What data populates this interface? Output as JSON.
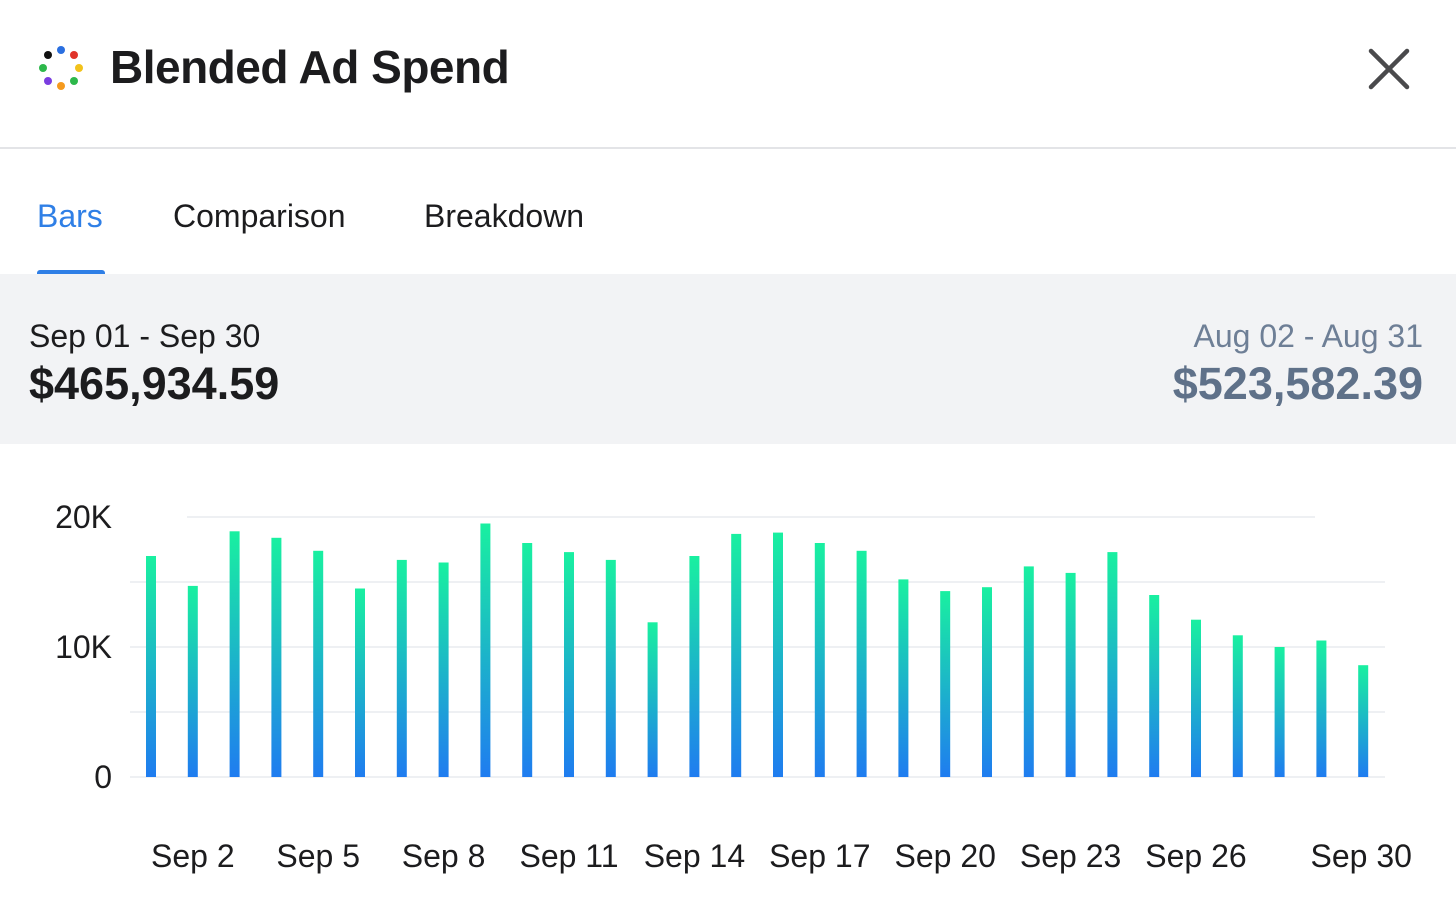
{
  "header": {
    "title": "Blended Ad Spend",
    "logo_icon": "colorful-dots-loader-icon",
    "close_icon": "close-x-icon"
  },
  "tabs": [
    {
      "label": "Bars",
      "active": true
    },
    {
      "label": "Comparison",
      "active": false
    },
    {
      "label": "Breakdown",
      "active": false
    }
  ],
  "summary": {
    "current_range": "Sep 01 - Sep 30",
    "current_total": "$465,934.59",
    "previous_range": "Aug 02 - Aug 31",
    "previous_total": "$523,582.39"
  },
  "colors": {
    "accent": "#2f7fe6",
    "bar_top": "#19f0a0",
    "bar_bottom": "#1f7cf0",
    "previous_text": "#5f7189"
  },
  "chart_data": {
    "type": "bar",
    "categories": [
      "Sep 1",
      "Sep 2",
      "Sep 3",
      "Sep 4",
      "Sep 5",
      "Sep 6",
      "Sep 7",
      "Sep 8",
      "Sep 9",
      "Sep 10",
      "Sep 11",
      "Sep 12",
      "Sep 13",
      "Sep 14",
      "Sep 15",
      "Sep 16",
      "Sep 17",
      "Sep 18",
      "Sep 19",
      "Sep 20",
      "Sep 21",
      "Sep 22",
      "Sep 23",
      "Sep 24",
      "Sep 25",
      "Sep 26",
      "Sep 27",
      "Sep 28",
      "Sep 29",
      "Sep 30"
    ],
    "values": [
      17000,
      14700,
      18900,
      18400,
      17400,
      14500,
      16700,
      16500,
      19500,
      18000,
      17300,
      16700,
      11900,
      17000,
      18700,
      18800,
      18000,
      17400,
      15200,
      14300,
      14600,
      16200,
      15700,
      17300,
      14000,
      12100,
      10900,
      10000,
      10500,
      8600
    ],
    "x_tick_labels": [
      "Sep 2",
      "Sep 5",
      "Sep 8",
      "Sep 11",
      "Sep 14",
      "Sep 17",
      "Sep 20",
      "Sep 23",
      "Sep 26",
      "Sep 30"
    ],
    "y_ticks": [
      0,
      10000,
      20000
    ],
    "y_tick_labels": [
      "0",
      "10K",
      "20K"
    ],
    "ylim": [
      0,
      20000
    ],
    "grid": true,
    "title": "",
    "xlabel": "",
    "ylabel": ""
  }
}
